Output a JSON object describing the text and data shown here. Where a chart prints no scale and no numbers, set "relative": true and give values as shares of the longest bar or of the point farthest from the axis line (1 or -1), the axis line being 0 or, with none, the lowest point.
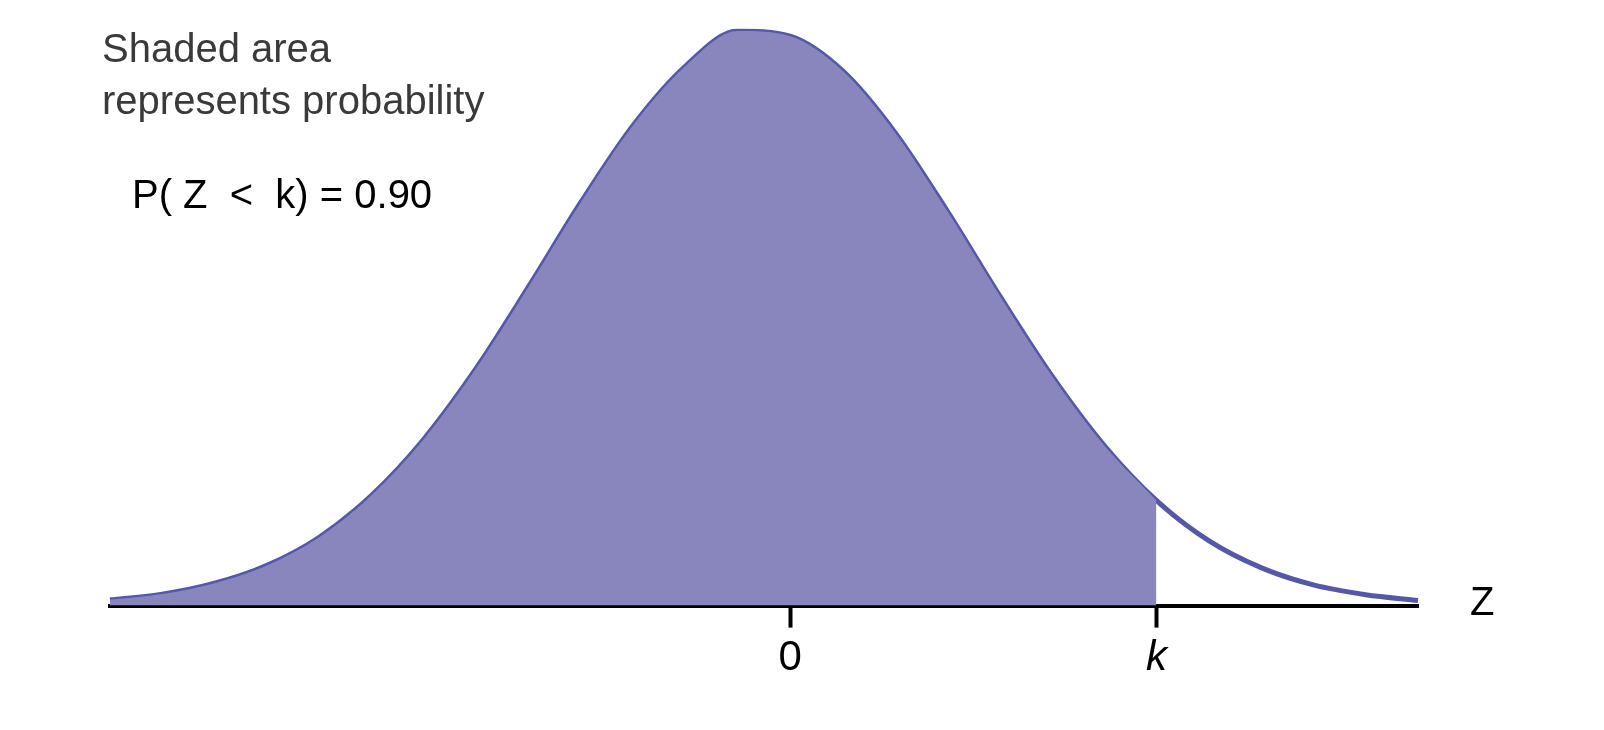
{
  "chart_data": {
    "type": "area",
    "relative": true,
    "xlabel": "Z",
    "legend": false,
    "grid": false,
    "marker": "none",
    "categories": [
      null,
      null,
      null,
      null,
      null,
      null,
      null,
      null,
      null,
      null,
      null,
      null,
      null,
      "0",
      null,
      null,
      null,
      null,
      null,
      null,
      "k",
      null,
      null,
      null,
      null,
      null
    ],
    "annotations": [
      "Shaded area represents probability",
      "P( Z  <  k) = 0.90"
    ],
    "series": [
      {
        "color": "#8886bd",
        "values": [
          0.01,
          0.02,
          0.039,
          0.07,
          0.119,
          0.192,
          0.29,
          0.413,
          0.555,
          0.702,
          0.836,
          0.939,
          1,
          0.991,
          0.931,
          0.824,
          0.687,
          0.54,
          0.4,
          0.279,
          0.183,
          null,
          null,
          null,
          null,
          null
        ]
      },
      {
        "type": "line",
        "color": "#5558a8",
        "values": [
          0.01,
          0.02,
          0.039,
          0.07,
          0.119,
          0.192,
          0.29,
          0.413,
          0.555,
          0.702,
          0.836,
          0.939,
          1,
          0.991,
          0.931,
          0.824,
          0.687,
          0.54,
          0.4,
          0.279,
          0.183,
          0.113,
          0.066,
          0.036,
          0.019,
          0.009
        ]
      }
    ]
  }
}
